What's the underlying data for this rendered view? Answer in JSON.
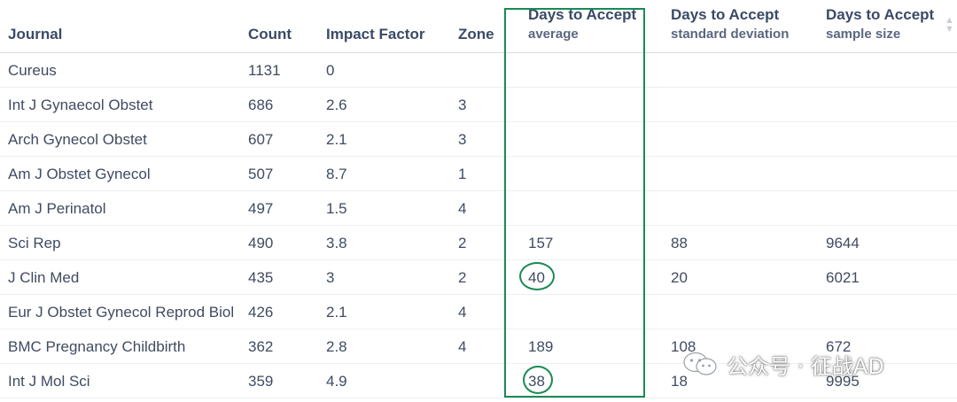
{
  "table": {
    "columns": {
      "journal": "Journal",
      "count": "Count",
      "impact_factor": "Impact Factor",
      "zone": "Zone",
      "avg_title": "Days to Accept",
      "avg_sub": "average",
      "sd_title": "Days to Accept",
      "sd_sub": "standard deviation",
      "n_title": "Days to Accept",
      "n_sub": "sample size"
    },
    "rows": [
      {
        "journal": "Cureus",
        "count": "1131",
        "impact_factor": "0",
        "zone": "",
        "avg": "",
        "sd": "",
        "n": ""
      },
      {
        "journal": "Int J Gynaecol Obstet",
        "count": "686",
        "impact_factor": "2.6",
        "zone": "3",
        "avg": "",
        "sd": "",
        "n": ""
      },
      {
        "journal": "Arch Gynecol Obstet",
        "count": "607",
        "impact_factor": "2.1",
        "zone": "3",
        "avg": "",
        "sd": "",
        "n": ""
      },
      {
        "journal": "Am J Obstet Gynecol",
        "count": "507",
        "impact_factor": "8.7",
        "zone": "1",
        "avg": "",
        "sd": "",
        "n": ""
      },
      {
        "journal": "Am J Perinatol",
        "count": "497",
        "impact_factor": "1.5",
        "zone": "4",
        "avg": "",
        "sd": "",
        "n": ""
      },
      {
        "journal": "Sci Rep",
        "count": "490",
        "impact_factor": "3.8",
        "zone": "2",
        "avg": "157",
        "sd": "88",
        "n": "9644"
      },
      {
        "journal": "J Clin Med",
        "count": "435",
        "impact_factor": "3",
        "zone": "2",
        "avg": "40",
        "sd": "20",
        "n": "6021"
      },
      {
        "journal": "Eur J Obstet Gynecol Reprod Biol",
        "count": "426",
        "impact_factor": "2.1",
        "zone": "4",
        "avg": "",
        "sd": "",
        "n": ""
      },
      {
        "journal": "BMC Pregnancy Childbirth",
        "count": "362",
        "impact_factor": "2.8",
        "zone": "4",
        "avg": "189",
        "sd": "108",
        "n": "672"
      },
      {
        "journal": "Int J Mol Sci",
        "count": "359",
        "impact_factor": "4.9",
        "zone": "",
        "avg": "38",
        "sd": "18",
        "n": "9995"
      }
    ]
  },
  "annotations": {
    "highlight_color": "#1a8a55",
    "circled_values": [
      "40",
      "38"
    ]
  },
  "watermark": {
    "text": "公众号 · 征战AD",
    "icon": "wechat-icon"
  },
  "sort_icon": "sort-arrows-icon"
}
